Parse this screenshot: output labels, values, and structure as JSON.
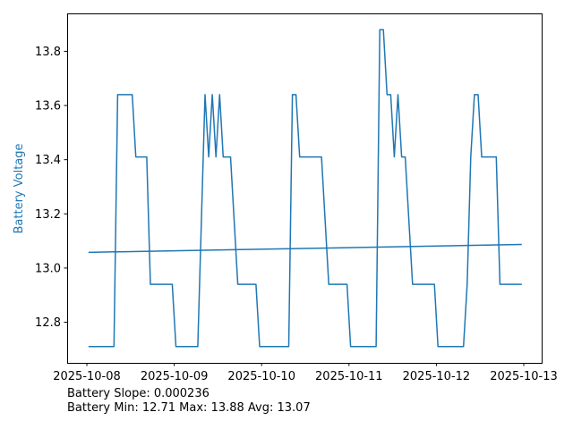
{
  "chart_data": {
    "type": "line",
    "title": "",
    "xlabel": "",
    "ylabel": "Battery Voltage",
    "ylabel_color": "#1f77b4",
    "line_color": "#1f77b4",
    "grid": false,
    "ylim": [
      12.65,
      13.94
    ],
    "xlim": [
      "2025-10-07 18:35",
      "2025-10-13 04:55"
    ],
    "yticks": [
      12.8,
      13.0,
      13.2,
      13.4,
      13.6,
      13.8
    ],
    "ytick_labels": [
      "12.8",
      "13.0",
      "13.2",
      "13.4",
      "13.6",
      "13.8"
    ],
    "xticks": [
      "2025-10-08",
      "2025-10-09",
      "2025-10-10",
      "2025-10-11",
      "2025-10-12",
      "2025-10-13"
    ],
    "series": [
      {
        "x": [
          "2025-10-08 00:27",
          "2025-10-08 07:27",
          "2025-10-08 08:27",
          "2025-10-08 12:27",
          "2025-10-08 13:27",
          "2025-10-08 16:27",
          "2025-10-08 17:27",
          "2025-10-08 23:27",
          "2025-10-09 00:27",
          "2025-10-09 06:27",
          "2025-10-09 08:27",
          "2025-10-09 09:27",
          "2025-10-09 10:27",
          "2025-10-09 11:27",
          "2025-10-09 12:27",
          "2025-10-09 13:27",
          "2025-10-09 15:27",
          "2025-10-09 17:27",
          "2025-10-09 22:27",
          "2025-10-09 23:27",
          "2025-10-10 07:27",
          "2025-10-10 08:27",
          "2025-10-10 09:27",
          "2025-10-10 10:27",
          "2025-10-10 16:27",
          "2025-10-10 18:27",
          "2025-10-10 23:27",
          "2025-10-11 00:27",
          "2025-10-11 07:27",
          "2025-10-11 08:27",
          "2025-10-11 09:27",
          "2025-10-11 10:27",
          "2025-10-11 11:27",
          "2025-10-11 12:27",
          "2025-10-11 13:27",
          "2025-10-11 14:27",
          "2025-10-11 15:27",
          "2025-10-11 17:27",
          "2025-10-11 23:27",
          "2025-10-12 00:27",
          "2025-10-12 07:27",
          "2025-10-12 08:27",
          "2025-10-12 09:27",
          "2025-10-12 10:27",
          "2025-10-12 11:27",
          "2025-10-12 12:27",
          "2025-10-12 16:27",
          "2025-10-12 17:27",
          "2025-10-12 23:27"
        ],
        "values": [
          12.71,
          12.71,
          13.64,
          13.64,
          13.41,
          13.41,
          12.94,
          12.94,
          12.71,
          12.71,
          13.64,
          13.41,
          13.64,
          13.41,
          13.64,
          13.41,
          13.41,
          12.94,
          12.94,
          12.71,
          12.71,
          13.64,
          13.64,
          13.41,
          13.41,
          12.94,
          12.94,
          12.71,
          12.71,
          13.88,
          13.88,
          13.64,
          13.64,
          13.41,
          13.64,
          13.41,
          13.41,
          12.94,
          12.94,
          12.71,
          12.71,
          12.94,
          13.41,
          13.64,
          13.64,
          13.41,
          13.41,
          12.94,
          12.94
        ]
      }
    ],
    "trendline": {
      "x": [
        "2025-10-08 00:27",
        "2025-10-12 23:27"
      ],
      "values": [
        13.058,
        13.087
      ]
    }
  },
  "footer": {
    "slope_line": "Battery Slope: 0.000236",
    "stats_line": "Battery Min: 12.71 Max: 13.88 Avg: 13.07"
  }
}
